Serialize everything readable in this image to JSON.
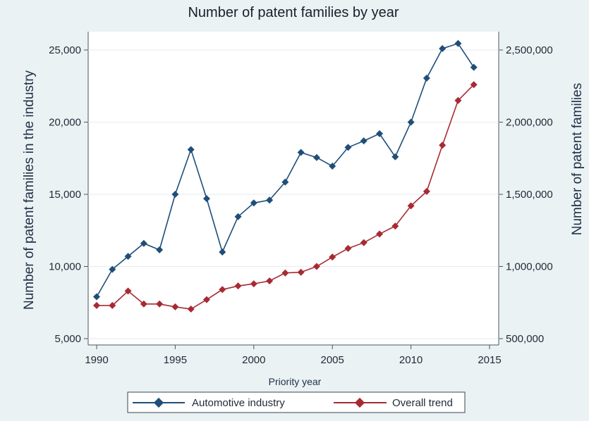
{
  "chart_data": {
    "type": "line",
    "title": "Number of patent families by year",
    "xlabel": "Priority year",
    "ylabel_left": "Number of patent families in the industry",
    "ylabel_right": "Number of patent families",
    "x": [
      1990,
      1991,
      1992,
      1993,
      1994,
      1995,
      1996,
      1997,
      1998,
      1999,
      2000,
      2001,
      2002,
      2003,
      2004,
      2005,
      2006,
      2007,
      2008,
      2009,
      2010,
      2011,
      2012,
      2013,
      2014
    ],
    "xlim": [
      1990,
      2015
    ],
    "ylim_left": [
      5000,
      26000
    ],
    "ylim_right": [
      500000,
      2600000
    ],
    "x_ticks": [
      "1990",
      "1995",
      "2000",
      "2005",
      "2010",
      "2015"
    ],
    "y_left_ticks": [
      "5,000",
      "10,000",
      "15,000",
      "20,000",
      "25,000"
    ],
    "y_right_ticks": [
      "500,000",
      "1,000,000",
      "1,500,000",
      "2,000,000",
      "2,500,000"
    ],
    "grid": true,
    "legend_position": "bottom",
    "series": [
      {
        "name": "Automotive industry",
        "axis": "left",
        "color": "#1f4e79",
        "values": [
          7900,
          9800,
          10700,
          11600,
          11150,
          15000,
          18100,
          14700,
          11000,
          13450,
          14400,
          14600,
          15850,
          17900,
          17550,
          16950,
          18250,
          18700,
          19200,
          17600,
          20000,
          23050,
          25100,
          25450,
          23800
        ]
      },
      {
        "name": "Overall trend",
        "axis": "right",
        "color": "#a82a33",
        "values": [
          730000,
          730000,
          830000,
          740000,
          740000,
          720000,
          705000,
          770000,
          840000,
          865000,
          880000,
          900000,
          955000,
          960000,
          1000000,
          1065000,
          1125000,
          1165000,
          1225000,
          1280000,
          1420000,
          1520000,
          1840000,
          2150000,
          2260000
        ]
      }
    ]
  }
}
